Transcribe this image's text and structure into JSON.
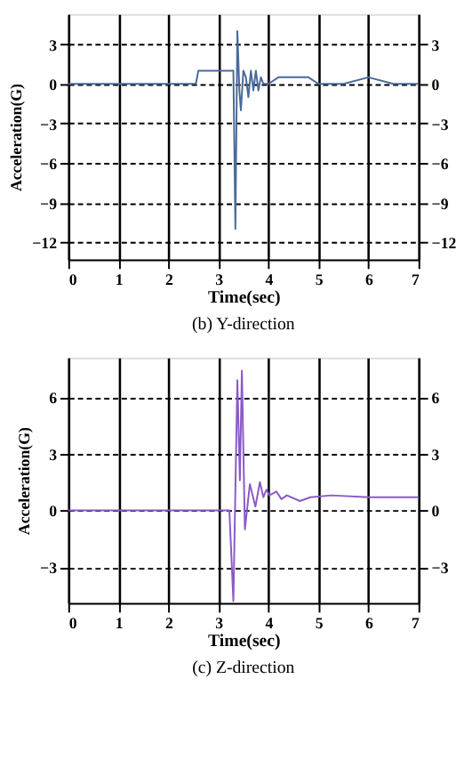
{
  "chart_data": [
    {
      "type": "line",
      "title": "(b)  Y-direction",
      "xlabel": "Time(sec)",
      "ylabel": "Acceleration(G)",
      "xlim": [
        0,
        7
      ],
      "xticks": [
        0,
        1,
        2,
        3,
        4,
        5,
        6,
        7
      ],
      "ylim": [
        -13.3,
        5.3
      ],
      "yticks": [
        -12,
        -9,
        -6,
        -3,
        0,
        3
      ],
      "y2lim": [
        -13.3,
        5.3
      ],
      "y2ticks": [
        -12,
        -9,
        -6,
        -3,
        0,
        3
      ],
      "grid": true,
      "series": [
        {
          "color": "#4a6a9a",
          "x": [
            0,
            0.5,
            1,
            1.5,
            2,
            2.55,
            2.6,
            2.7,
            3.0,
            3.3,
            3.34,
            3.38,
            3.42,
            3.45,
            3.5,
            3.55,
            3.6,
            3.65,
            3.7,
            3.75,
            3.8,
            3.85,
            3.9,
            4.0,
            4.2,
            4.5,
            4.8,
            5.0,
            5.5,
            6.0,
            6.5,
            7.0
          ],
          "values": [
            0,
            0,
            0,
            0,
            0,
            0,
            1,
            1,
            1,
            1,
            -11,
            4,
            -0.5,
            -2,
            1,
            0.5,
            -1,
            1,
            -0.5,
            1,
            -0.5,
            0.5,
            0,
            0,
            0.5,
            0.5,
            0.5,
            0,
            0,
            0.5,
            0,
            0
          ]
        }
      ]
    },
    {
      "type": "line",
      "title": "(c)  Z-direction",
      "xlabel": "Time(sec)",
      "ylabel": "Acceleration(G)",
      "xlim": [
        0,
        7
      ],
      "xticks": [
        0,
        1,
        2,
        3,
        4,
        5,
        6,
        7
      ],
      "ylim": [
        -4.9,
        8.1
      ],
      "yticks": [
        -3,
        0,
        3,
        6
      ],
      "y2lim": [
        -4.9,
        8.1
      ],
      "y2ticks": [
        -3,
        0,
        3,
        6
      ],
      "grid": true,
      "series": [
        {
          "color": "#8a5ac8",
          "x": [
            0,
            1,
            2,
            3,
            3.22,
            3.3,
            3.38,
            3.43,
            3.47,
            3.53,
            3.63,
            3.74,
            3.83,
            3.9,
            3.96,
            4.02,
            4.16,
            4.26,
            4.37,
            4.63,
            4.84,
            5.26,
            6.0,
            7.0
          ],
          "values": [
            0,
            0,
            0,
            0,
            0,
            -4.8,
            6.9,
            1.6,
            7.4,
            -1.0,
            1.4,
            0.2,
            1.5,
            0.7,
            1.1,
            0.8,
            1.0,
            0.6,
            0.8,
            0.5,
            0.7,
            0.8,
            0.7,
            0.7
          ]
        }
      ]
    }
  ]
}
